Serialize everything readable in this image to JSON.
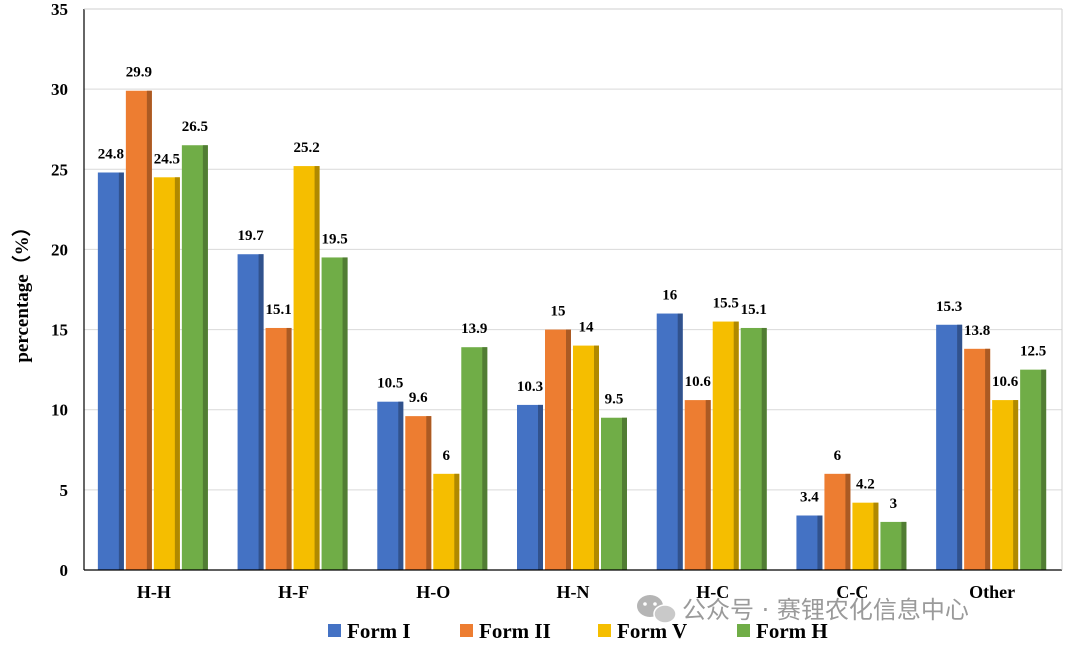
{
  "chart_data": {
    "type": "bar",
    "ylabel": "percentage（%）",
    "xlabel": "",
    "ylim": [
      0,
      35
    ],
    "yticks": [
      "0",
      "5",
      "10",
      "15",
      "20",
      "25",
      "30",
      "35"
    ],
    "grid": true,
    "legend_position": "bottom",
    "categories": [
      "H-H",
      "H-F",
      "H-O",
      "H-N",
      "H-C",
      "C-C",
      "Other"
    ],
    "series": [
      {
        "name": "Form I",
        "color": "#4472C4",
        "values": [
          24.8,
          19.7,
          10.5,
          10.3,
          16,
          3.4,
          15.3
        ]
      },
      {
        "name": "Form II",
        "color": "#ED7D31",
        "values": [
          29.9,
          15.1,
          9.6,
          15,
          10.6,
          6,
          13.8
        ]
      },
      {
        "name": "Form V",
        "color": "#F5BE00",
        "values": [
          24.5,
          25.2,
          6,
          14,
          15.5,
          4.2,
          10.6
        ]
      },
      {
        "name": "Form H",
        "color": "#70AD47",
        "values": [
          26.5,
          19.5,
          13.9,
          9.5,
          15.1,
          3,
          12.5
        ]
      }
    ]
  },
  "watermark": {
    "text": "公众号 · 赛锂农化信息中心",
    "icon": "wechat-icon"
  }
}
